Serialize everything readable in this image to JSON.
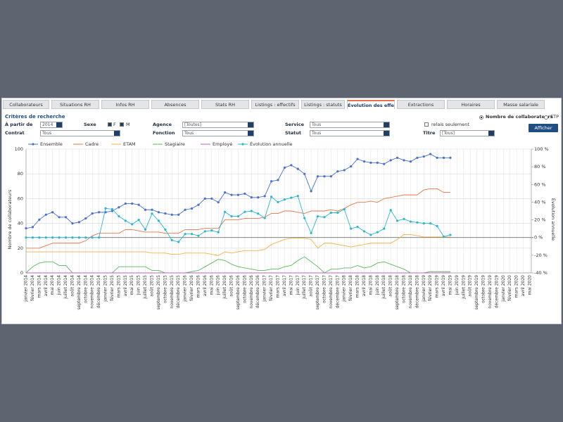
{
  "tabs": [
    "Collaborateurs",
    "Situations RH",
    "Infos RH",
    "Absences",
    "Stats RH",
    "Listings : effectifs",
    "Listings : statuts",
    "Évolution des effectifs",
    "Extractions",
    "Horaires",
    "Masse salariale"
  ],
  "criteria": {
    "title": "Critères de recherche",
    "from_label": "À partir de",
    "from_value": "2014",
    "sex_label": "Sexe",
    "sex_f": "F",
    "sex_m": "M",
    "agency_label": "Agence",
    "agency_value": "[Toutes]",
    "service_label": "Service",
    "service_value": "Tous",
    "relay": "relais seulement",
    "count_option": "Nombre de collaborateurs",
    "etp_option": "ETP",
    "contract_label": "Contrat",
    "contract_value": "Tous",
    "function_label": "Fonction",
    "function_value": "Tous",
    "status_label": "Statut",
    "status_value": "Tous",
    "title_label": "Titre",
    "title_value": "[Tous]",
    "button": "Afficher"
  },
  "chart_data": {
    "type": "line",
    "ylabel": "Nombre de collaborateurs",
    "y2label": "Évolution annuelle",
    "categories": [
      "janvier 2014",
      "février 2014",
      "mars 2014",
      "avril 2014",
      "mai 2014",
      "juin 2014",
      "juillet 2014",
      "août 2014",
      "septembre 2014",
      "octobre 2014",
      "novembre 2014",
      "décembre 2014",
      "janvier 2015",
      "février 2015",
      "mars 2015",
      "avril 2015",
      "mai 2015",
      "juin 2015",
      "juillet 2015",
      "août 2015",
      "septembre 2015",
      "octobre 2015",
      "novembre 2015",
      "décembre 2015",
      "janvier 2016",
      "février 2016",
      "mars 2016",
      "avril 2016",
      "mai 2016",
      "juin 2016",
      "juillet 2016",
      "août 2016",
      "septembre 2016",
      "octobre 2016",
      "novembre 2016",
      "décembre 2016",
      "janvier 2017",
      "février 2017",
      "mars 2017",
      "avril 2017",
      "mai 2017",
      "juin 2017",
      "juillet 2017",
      "août 2017",
      "septembre 2017",
      "octobre 2017",
      "novembre 2017",
      "décembre 2017",
      "janvier 2018",
      "février 2018",
      "mars 2018",
      "avril 2018",
      "mai 2018",
      "juin 2018",
      "juillet 2018",
      "août 2018",
      "septembre 2018",
      "octobre 2018",
      "novembre 2018",
      "décembre 2018",
      "janvier 2019",
      "février 2019",
      "mars 2019",
      "avril 2019",
      "mai 2019",
      "juin 2019",
      "juillet 2019",
      "août 2019",
      "septembre 2019",
      "octobre 2019",
      "novembre 2019",
      "décembre 2019",
      "janvier 2020",
      "février 2020",
      "mars 2020",
      "avril 2020",
      "mai 2020"
    ],
    "series": [
      {
        "name": "Ensemble",
        "color": "#4a6fd4",
        "markers": true,
        "values": [
          36,
          37,
          43,
          47,
          49,
          45,
          45,
          40,
          41,
          44,
          48,
          49,
          49,
          50,
          53,
          56,
          56,
          55,
          51,
          51,
          49,
          48,
          47,
          47,
          51,
          52,
          55,
          60,
          60,
          57,
          65,
          63,
          63,
          64,
          61,
          61,
          62,
          74,
          75,
          85,
          87,
          84,
          80,
          66,
          78,
          78,
          78,
          82,
          83,
          86,
          92,
          90,
          89,
          89,
          88,
          91,
          93,
          91,
          90,
          93,
          94,
          96,
          93,
          93,
          93,
          null,
          null,
          null,
          null,
          null,
          null,
          null,
          null,
          null,
          null,
          null,
          null
        ]
      },
      {
        "name": "Cadre",
        "color": "#e8734a",
        "markers": false,
        "values": [
          20,
          20,
          20,
          22,
          24,
          24,
          24,
          24,
          24,
          26,
          30,
          32,
          32,
          32,
          32,
          35,
          35,
          34,
          33,
          33,
          33,
          32,
          32,
          32,
          35,
          35,
          35,
          36,
          36,
          36,
          43,
          43,
          43,
          44,
          44,
          44,
          45,
          48,
          48,
          50,
          50,
          49,
          48,
          50,
          50,
          50,
          51,
          50,
          52,
          55,
          57,
          57,
          58,
          57,
          60,
          61,
          62,
          63,
          63,
          63,
          67,
          68,
          68,
          65,
          65,
          null,
          null,
          null,
          null,
          null,
          null,
          null,
          null,
          null,
          null,
          null,
          null
        ]
      },
      {
        "name": "ETAM",
        "color": "#f5b041",
        "markers": false,
        "values": [
          17,
          17,
          17,
          17,
          17,
          17,
          17,
          17,
          17,
          17,
          17,
          17,
          17,
          17,
          17,
          17,
          17,
          17,
          17,
          16,
          16,
          16,
          15,
          15,
          16,
          16,
          16,
          16,
          15,
          14,
          17,
          16,
          17,
          18,
          18,
          18,
          19,
          23,
          25,
          27,
          28,
          28,
          28,
          27,
          20,
          24,
          24,
          23,
          22,
          21,
          22,
          23,
          24,
          24,
          24,
          24,
          27,
          31,
          31,
          30,
          29,
          29,
          29,
          29,
          29,
          null,
          null,
          null,
          null,
          null,
          null,
          null,
          null,
          null,
          null,
          null,
          null
        ]
      },
      {
        "name": "Stagiaire",
        "color": "#5cb85c",
        "markers": false,
        "values": [
          0,
          5,
          8,
          9,
          9,
          6,
          6,
          0,
          0,
          0,
          0,
          0,
          0,
          0,
          5,
          5,
          5,
          5,
          5,
          2,
          2,
          0,
          0,
          0,
          0,
          1,
          2,
          5,
          8,
          11,
          10,
          7,
          5,
          4,
          3,
          2,
          2,
          3,
          3,
          5,
          6,
          10,
          13,
          9,
          5,
          0,
          3,
          3,
          4,
          4,
          6,
          4,
          5,
          8,
          9,
          7,
          5,
          3,
          0,
          0,
          0,
          1,
          1,
          1,
          1,
          null,
          null,
          null,
          null,
          null,
          null,
          null,
          null,
          null,
          null,
          null,
          null
        ]
      },
      {
        "name": "Employé",
        "color": "#c05fc0",
        "markers": false,
        "values": [
          0,
          0,
          0,
          0,
          0,
          0,
          0,
          0,
          0,
          0,
          0,
          0,
          0,
          0,
          0,
          0,
          0,
          0,
          0,
          0,
          0,
          0,
          0,
          0,
          0,
          0,
          0,
          0,
          0,
          0,
          0,
          0,
          0,
          0,
          0,
          0,
          0,
          0,
          0,
          0,
          0,
          0,
          0,
          0,
          0,
          0,
          0,
          0,
          0,
          0,
          0,
          0,
          0,
          0,
          0,
          0,
          0,
          0,
          0,
          0,
          0,
          0,
          0,
          0,
          0,
          null,
          null,
          null,
          null,
          null,
          null,
          null,
          null,
          null,
          null,
          null,
          null
        ]
      },
      {
        "name": "Évolution annuelle",
        "color": "#2bb6d0",
        "markers": true,
        "axis": "y2",
        "values": [
          0,
          0,
          0,
          0,
          0,
          0,
          0,
          0,
          0,
          0,
          0,
          0,
          33,
          32,
          24,
          19,
          15,
          20,
          9,
          27,
          19,
          9,
          -3,
          -5,
          4,
          4,
          2,
          7,
          8,
          6,
          29,
          24,
          24,
          29,
          30,
          27,
          22,
          46,
          40,
          43,
          45,
          47,
          22,
          5,
          24,
          23,
          28,
          28,
          32,
          10,
          12,
          7,
          3,
          6,
          10,
          31,
          19,
          21,
          18,
          17,
          16,
          16,
          13,
          1,
          3,
          null,
          null,
          null,
          null,
          null,
          null,
          null,
          null,
          null,
          null,
          null,
          null
        ]
      }
    ],
    "ylim": [
      0,
      100
    ],
    "yticks": [
      0,
      20,
      40,
      60,
      80,
      100
    ],
    "y2lim": [
      -40,
      100
    ],
    "y2ticks": [
      {
        "value": -40,
        "label": "-40 %"
      },
      {
        "value": -20,
        "label": "-20 %"
      },
      {
        "value": 0,
        "label": "0 %"
      },
      {
        "value": 20,
        "label": "20 %"
      },
      {
        "value": 40,
        "label": "40 %"
      },
      {
        "value": 60,
        "label": "60 %"
      },
      {
        "value": 80,
        "label": "80 %"
      },
      {
        "value": 100,
        "label": "100 %"
      }
    ],
    "grid": true
  }
}
